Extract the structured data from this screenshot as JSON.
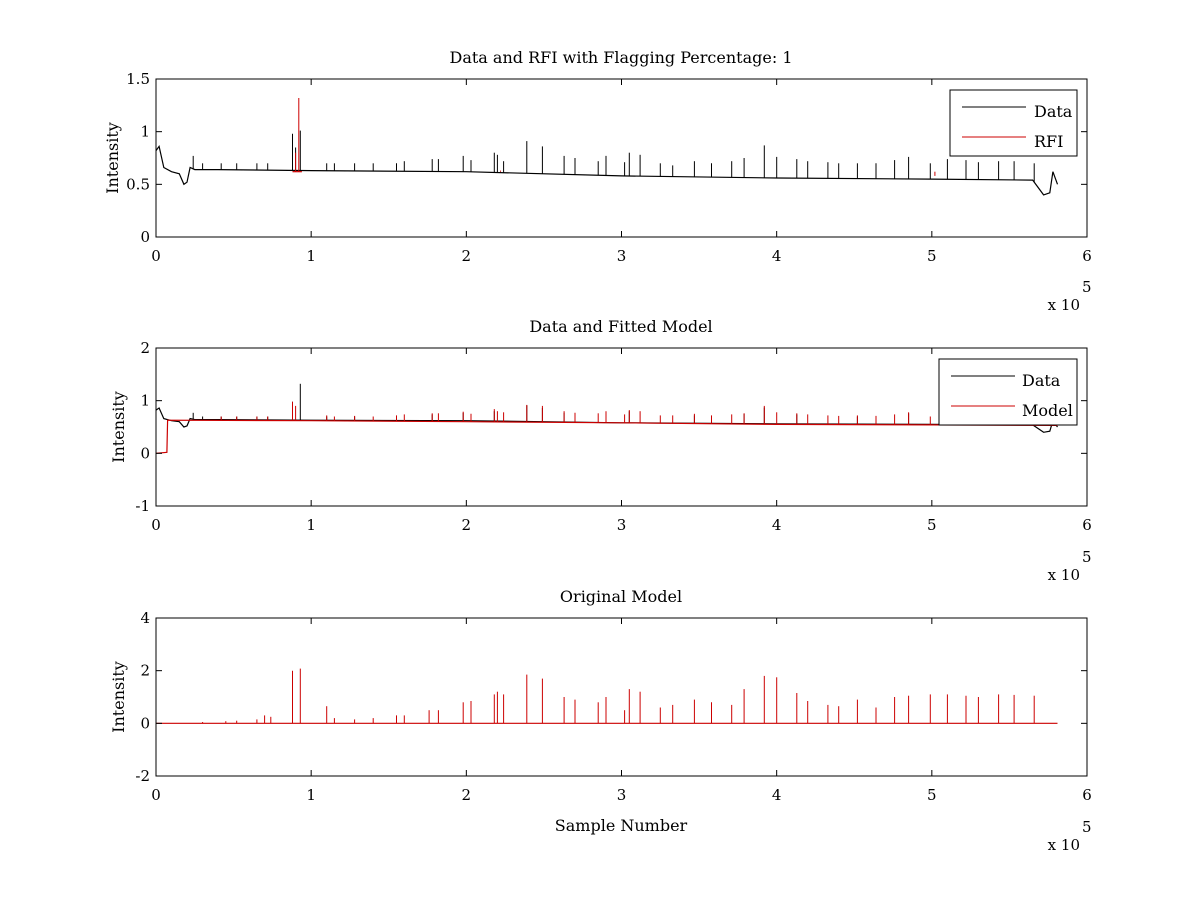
{
  "chart_data": [
    {
      "type": "line",
      "title": "Data and RFI with Flagging Percentage: 1",
      "xlabel": "",
      "ylabel": "Intensity",
      "xlim": [
        0,
        6
      ],
      "ylim": [
        0,
        1.5
      ],
      "x_ticks": [
        "0",
        "1",
        "2",
        "3",
        "4",
        "5",
        "6"
      ],
      "y_ticks": [
        "0",
        "0.5",
        "1",
        "1.5"
      ],
      "x_multiplier": "x 10",
      "x_multiplier_exp": "5",
      "legend": {
        "placement": "top-right",
        "entries": [
          "Data",
          "RFI"
        ]
      },
      "series": [
        {
          "name": "Data",
          "color": "#000000",
          "baseline": [
            [
              0.0,
              0.82
            ],
            [
              0.02,
              0.86
            ],
            [
              0.05,
              0.66
            ],
            [
              0.1,
              0.62
            ],
            [
              0.15,
              0.6
            ],
            [
              0.18,
              0.5
            ],
            [
              0.2,
              0.52
            ],
            [
              0.22,
              0.66
            ],
            [
              0.25,
              0.64
            ],
            [
              0.4,
              0.64
            ],
            [
              1.0,
              0.63
            ],
            [
              2.0,
              0.62
            ],
            [
              3.0,
              0.58
            ],
            [
              4.0,
              0.56
            ],
            [
              5.0,
              0.55
            ],
            [
              5.65,
              0.54
            ],
            [
              5.72,
              0.4
            ],
            [
              5.76,
              0.42
            ],
            [
              5.78,
              0.62
            ],
            [
              5.81,
              0.5
            ]
          ],
          "spikes": [
            [
              0.24,
              0.77
            ],
            [
              0.3,
              0.7
            ],
            [
              0.42,
              0.7
            ],
            [
              0.52,
              0.7
            ],
            [
              0.65,
              0.7
            ],
            [
              0.72,
              0.7
            ],
            [
              0.88,
              0.98
            ],
            [
              0.9,
              0.85
            ],
            [
              0.93,
              1.01
            ],
            [
              1.1,
              0.7
            ],
            [
              1.15,
              0.7
            ],
            [
              1.28,
              0.7
            ],
            [
              1.4,
              0.7
            ],
            [
              1.55,
              0.7
            ],
            [
              1.6,
              0.72
            ],
            [
              1.78,
              0.74
            ],
            [
              1.82,
              0.74
            ],
            [
              1.98,
              0.77
            ],
            [
              2.03,
              0.73
            ],
            [
              2.18,
              0.8
            ],
            [
              2.2,
              0.78
            ],
            [
              2.24,
              0.72
            ],
            [
              2.39,
              0.91
            ],
            [
              2.49,
              0.86
            ],
            [
              2.63,
              0.77
            ],
            [
              2.7,
              0.75
            ],
            [
              2.85,
              0.72
            ],
            [
              2.9,
              0.77
            ],
            [
              3.02,
              0.71
            ],
            [
              3.05,
              0.8
            ],
            [
              3.12,
              0.78
            ],
            [
              3.25,
              0.7
            ],
            [
              3.33,
              0.68
            ],
            [
              3.47,
              0.72
            ],
            [
              3.58,
              0.7
            ],
            [
              3.71,
              0.72
            ],
            [
              3.79,
              0.75
            ],
            [
              3.92,
              0.87
            ],
            [
              4.0,
              0.76
            ],
            [
              4.13,
              0.74
            ],
            [
              4.2,
              0.72
            ],
            [
              4.33,
              0.71
            ],
            [
              4.4,
              0.7
            ],
            [
              4.52,
              0.7
            ],
            [
              4.64,
              0.7
            ],
            [
              4.76,
              0.73
            ],
            [
              4.85,
              0.76
            ],
            [
              4.99,
              0.7
            ],
            [
              5.1,
              0.74
            ],
            [
              5.22,
              0.73
            ],
            [
              5.3,
              0.71
            ],
            [
              5.43,
              0.72
            ],
            [
              5.53,
              0.72
            ],
            [
              5.66,
              0.7
            ]
          ]
        },
        {
          "name": "RFI",
          "color": "#cc0000",
          "baseline": [
            [
              0.88,
              0.62
            ],
            [
              0.94,
              0.62
            ]
          ],
          "spikes": [
            [
              0.9,
              0.8
            ],
            [
              0.92,
              1.32
            ],
            [
              2.22,
              0.63
            ],
            [
              3.03,
              0.62
            ],
            [
              5.02,
              0.58
            ]
          ]
        }
      ]
    },
    {
      "type": "line",
      "title": "Data and Fitted Model",
      "xlabel": "",
      "ylabel": "Intensity",
      "xlim": [
        0,
        6
      ],
      "ylim": [
        -1,
        2
      ],
      "x_ticks": [
        "0",
        "1",
        "2",
        "3",
        "4",
        "5",
        "6"
      ],
      "y_ticks": [
        "-1",
        "0",
        "1",
        "2"
      ],
      "x_multiplier": "x 10",
      "x_multiplier_exp": "5",
      "legend": {
        "placement": "top-right",
        "entries": [
          "Data",
          "Model"
        ]
      },
      "series": [
        {
          "name": "Data",
          "color": "#000000",
          "baseline": [
            [
              0.0,
              0.82
            ],
            [
              0.02,
              0.86
            ],
            [
              0.05,
              0.66
            ],
            [
              0.1,
              0.62
            ],
            [
              0.15,
              0.6
            ],
            [
              0.18,
              0.5
            ],
            [
              0.2,
              0.52
            ],
            [
              0.22,
              0.66
            ],
            [
              0.25,
              0.64
            ],
            [
              0.4,
              0.64
            ],
            [
              1.0,
              0.63
            ],
            [
              2.0,
              0.62
            ],
            [
              3.0,
              0.58
            ],
            [
              4.0,
              0.56
            ],
            [
              5.0,
              0.55
            ],
            [
              5.65,
              0.54
            ],
            [
              5.72,
              0.4
            ],
            [
              5.76,
              0.42
            ],
            [
              5.78,
              0.62
            ],
            [
              5.81,
              0.5
            ]
          ],
          "spikes": [
            [
              0.24,
              0.77
            ],
            [
              0.3,
              0.7
            ],
            [
              0.42,
              0.7
            ],
            [
              0.52,
              0.7
            ],
            [
              0.65,
              0.7
            ],
            [
              0.72,
              0.7
            ],
            [
              0.88,
              0.98
            ],
            [
              0.93,
              1.32
            ],
            [
              1.1,
              0.7
            ],
            [
              1.28,
              0.7
            ],
            [
              1.55,
              0.7
            ],
            [
              1.78,
              0.74
            ],
            [
              1.98,
              0.77
            ],
            [
              2.18,
              0.8
            ],
            [
              2.39,
              0.91
            ],
            [
              2.49,
              0.86
            ],
            [
              2.63,
              0.77
            ],
            [
              2.9,
              0.77
            ],
            [
              3.05,
              0.8
            ],
            [
              3.47,
              0.72
            ],
            [
              3.79,
              0.75
            ],
            [
              3.92,
              0.87
            ],
            [
              4.13,
              0.74
            ],
            [
              4.52,
              0.7
            ],
            [
              4.85,
              0.76
            ],
            [
              5.1,
              0.74
            ],
            [
              5.43,
              0.72
            ]
          ]
        },
        {
          "name": "Model",
          "color": "#cc0000",
          "baseline": [
            [
              0.0,
              0.0
            ],
            [
              0.07,
              0.02
            ],
            [
              0.075,
              0.63
            ],
            [
              1.0,
              0.62
            ],
            [
              2.0,
              0.6
            ],
            [
              3.0,
              0.58
            ],
            [
              4.0,
              0.55
            ],
            [
              5.0,
              0.54
            ],
            [
              5.81,
              0.53
            ]
          ],
          "spikes": [
            [
              0.42,
              0.7
            ],
            [
              0.52,
              0.7
            ],
            [
              0.65,
              0.7
            ],
            [
              0.72,
              0.7
            ],
            [
              0.88,
              0.98
            ],
            [
              0.9,
              0.9
            ],
            [
              1.1,
              0.72
            ],
            [
              1.15,
              0.7
            ],
            [
              1.28,
              0.71
            ],
            [
              1.4,
              0.7
            ],
            [
              1.55,
              0.72
            ],
            [
              1.6,
              0.74
            ],
            [
              1.78,
              0.76
            ],
            [
              1.82,
              0.76
            ],
            [
              1.98,
              0.79
            ],
            [
              2.03,
              0.75
            ],
            [
              2.18,
              0.84
            ],
            [
              2.2,
              0.8
            ],
            [
              2.24,
              0.78
            ],
            [
              2.39,
              0.92
            ],
            [
              2.49,
              0.9
            ],
            [
              2.63,
              0.8
            ],
            [
              2.7,
              0.77
            ],
            [
              2.85,
              0.76
            ],
            [
              2.9,
              0.8
            ],
            [
              3.02,
              0.74
            ],
            [
              3.05,
              0.82
            ],
            [
              3.12,
              0.8
            ],
            [
              3.25,
              0.72
            ],
            [
              3.33,
              0.72
            ],
            [
              3.47,
              0.75
            ],
            [
              3.58,
              0.72
            ],
            [
              3.71,
              0.74
            ],
            [
              3.79,
              0.76
            ],
            [
              3.92,
              0.9
            ],
            [
              4.0,
              0.78
            ],
            [
              4.13,
              0.76
            ],
            [
              4.2,
              0.74
            ],
            [
              4.33,
              0.72
            ],
            [
              4.4,
              0.71
            ],
            [
              4.52,
              0.72
            ],
            [
              4.64,
              0.71
            ],
            [
              4.76,
              0.74
            ],
            [
              4.85,
              0.78
            ],
            [
              4.99,
              0.7
            ],
            [
              5.1,
              0.74
            ],
            [
              5.22,
              0.73
            ],
            [
              5.3,
              0.71
            ],
            [
              5.43,
              0.72
            ],
            [
              5.53,
              0.72
            ],
            [
              5.66,
              0.7
            ]
          ]
        }
      ]
    },
    {
      "type": "line",
      "title": "Original Model",
      "xlabel": "Sample Number",
      "ylabel": "Intensity",
      "xlim": [
        0,
        6
      ],
      "ylim": [
        -2,
        4
      ],
      "x_ticks": [
        "0",
        "1",
        "2",
        "3",
        "4",
        "5",
        "6"
      ],
      "y_ticks": [
        "-2",
        "0",
        "2",
        "4"
      ],
      "x_multiplier": "x 10",
      "x_multiplier_exp": "5",
      "series": [
        {
          "color": "#cc0000",
          "baseline": [
            [
              0.0,
              0.0
            ],
            [
              5.81,
              0.0
            ]
          ],
          "spikes": [
            [
              0.3,
              0.05
            ],
            [
              0.45,
              0.08
            ],
            [
              0.52,
              0.1
            ],
            [
              0.65,
              0.15
            ],
            [
              0.7,
              0.3
            ],
            [
              0.74,
              0.25
            ],
            [
              0.88,
              2.0
            ],
            [
              0.93,
              2.08
            ],
            [
              1.1,
              0.65
            ],
            [
              1.15,
              0.2
            ],
            [
              1.28,
              0.15
            ],
            [
              1.4,
              0.2
            ],
            [
              1.55,
              0.3
            ],
            [
              1.6,
              0.3
            ],
            [
              1.76,
              0.5
            ],
            [
              1.82,
              0.5
            ],
            [
              1.98,
              0.8
            ],
            [
              2.03,
              0.85
            ],
            [
              2.18,
              1.1
            ],
            [
              2.2,
              1.2
            ],
            [
              2.24,
              1.1
            ],
            [
              2.39,
              1.85
            ],
            [
              2.49,
              1.7
            ],
            [
              2.63,
              1.0
            ],
            [
              2.7,
              0.9
            ],
            [
              2.85,
              0.8
            ],
            [
              2.9,
              1.0
            ],
            [
              3.02,
              0.5
            ],
            [
              3.05,
              1.3
            ],
            [
              3.12,
              1.2
            ],
            [
              3.25,
              0.6
            ],
            [
              3.33,
              0.7
            ],
            [
              3.47,
              0.9
            ],
            [
              3.58,
              0.8
            ],
            [
              3.71,
              0.7
            ],
            [
              3.79,
              1.3
            ],
            [
              3.92,
              1.8
            ],
            [
              4.0,
              1.75
            ],
            [
              4.13,
              1.15
            ],
            [
              4.2,
              0.85
            ],
            [
              4.33,
              0.7
            ],
            [
              4.4,
              0.65
            ],
            [
              4.52,
              0.9
            ],
            [
              4.64,
              0.6
            ],
            [
              4.76,
              1.0
            ],
            [
              4.85,
              1.05
            ],
            [
              4.99,
              1.1
            ],
            [
              5.1,
              1.1
            ],
            [
              5.22,
              1.05
            ],
            [
              5.3,
              1.0
            ],
            [
              5.43,
              1.1
            ],
            [
              5.53,
              1.08
            ],
            [
              5.66,
              1.05
            ]
          ]
        }
      ]
    }
  ]
}
